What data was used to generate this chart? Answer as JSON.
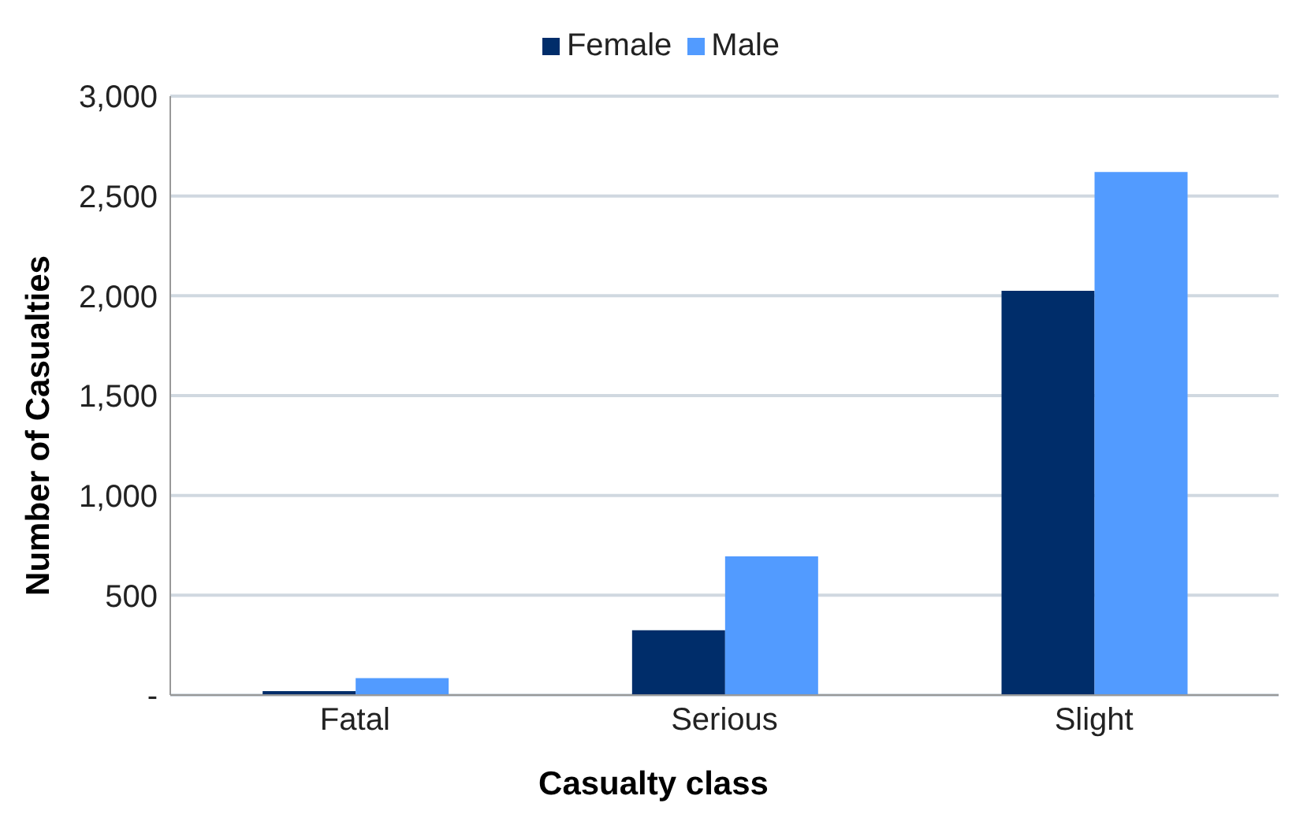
{
  "chart_data": {
    "type": "bar",
    "xlabel": "Casualty class",
    "ylabel": "Number of Casualties",
    "categories": [
      "Fatal",
      "Serious",
      "Slight"
    ],
    "series": [
      {
        "name": "Female",
        "color": "#002d6a",
        "values": [
          20,
          325,
          2025
        ]
      },
      {
        "name": "Male",
        "color": "#529bff",
        "values": [
          85,
          695,
          2620
        ]
      }
    ],
    "ylim": [
      0,
      3000
    ],
    "yticks": [
      {
        "value": 0,
        "label": "-"
      },
      {
        "value": 500,
        "label": "500"
      },
      {
        "value": 1000,
        "label": "1,000"
      },
      {
        "value": 1500,
        "label": "1,500"
      },
      {
        "value": 2000,
        "label": "2,000"
      },
      {
        "value": 2500,
        "label": "2,500"
      },
      {
        "value": 3000,
        "label": "3,000"
      }
    ],
    "grid": "y",
    "legend": "top"
  }
}
